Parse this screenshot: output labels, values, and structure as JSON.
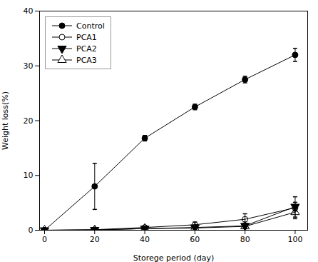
{
  "chart_data": {
    "type": "line",
    "xlabel": "Storege period (day)",
    "ylabel": "Weight loss(%)",
    "x": [
      0,
      20,
      40,
      60,
      80,
      100
    ],
    "series": [
      {
        "name": "Control",
        "color": "#000000",
        "marker": "circle",
        "values": [
          0,
          8.0,
          16.8,
          22.5,
          27.5,
          32.0
        ],
        "yerr": [
          0,
          4.2,
          0.5,
          0.5,
          0.6,
          1.2
        ]
      },
      {
        "name": "PCA1",
        "color": "#000000",
        "marker": "circle-open",
        "values": [
          0,
          0.1,
          0.5,
          1.0,
          2.0,
          4.1
        ],
        "yerr": [
          0,
          0.1,
          0.15,
          0.5,
          1.0,
          2.0
        ]
      },
      {
        "name": "PCA2",
        "color": "#000000",
        "marker": "triangle-down",
        "values": [
          0,
          0.05,
          0.3,
          0.5,
          0.8,
          4.3
        ],
        "yerr": [
          0,
          0.05,
          0.1,
          0.3,
          0.5,
          0.8
        ]
      },
      {
        "name": "PCA3",
        "color": "#000000",
        "marker": "triangle-up-open",
        "values": [
          0,
          0.05,
          0.3,
          0.4,
          0.7,
          3.3
        ],
        "yerr": [
          0,
          0.05,
          0.1,
          0.2,
          0.4,
          0.9
        ]
      }
    ],
    "xlim": [
      -2,
      105
    ],
    "ylim": [
      0,
      40
    ],
    "xticks": [
      0,
      20,
      40,
      60,
      80,
      100
    ],
    "yticks": [
      0,
      10,
      20,
      30,
      40
    ],
    "grid": false,
    "legend": "upper left"
  }
}
